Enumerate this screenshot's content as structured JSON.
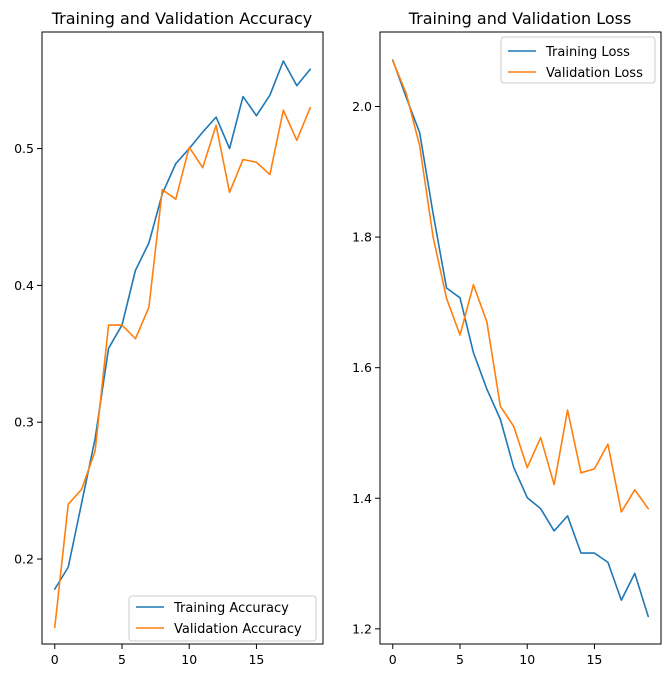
{
  "chart_data": [
    {
      "type": "line",
      "title": "Training and Validation Accuracy",
      "xlabel": "",
      "ylabel": "",
      "x": [
        0,
        1,
        2,
        3,
        4,
        5,
        6,
        7,
        8,
        9,
        10,
        11,
        12,
        13,
        14,
        15,
        16,
        17,
        18,
        19
      ],
      "xlim": [
        -0.95,
        19.95
      ],
      "ylim": [
        0.1379,
        0.5852
      ],
      "xticks": [
        0,
        5,
        10,
        15
      ],
      "yticks": [
        0.2,
        0.3,
        0.4,
        0.5
      ],
      "xtick_labels": [
        "0",
        "5",
        "10",
        "15"
      ],
      "ytick_labels": [
        "0.2",
        "0.3",
        "0.4",
        "0.5"
      ],
      "grid": false,
      "legend_position": "lower-right",
      "series": [
        {
          "name": "Training Accuracy",
          "color": "#1f77b4",
          "values": [
            0.178,
            0.194,
            0.241,
            0.288,
            0.354,
            0.371,
            0.411,
            0.431,
            0.467,
            0.489,
            0.5,
            0.512,
            0.523,
            0.5,
            0.538,
            0.524,
            0.539,
            0.564,
            0.546,
            0.558
          ]
        },
        {
          "name": "Validation Accuracy",
          "color": "#ff7f0e",
          "values": [
            0.15,
            0.24,
            0.251,
            0.279,
            0.371,
            0.371,
            0.361,
            0.384,
            0.47,
            0.463,
            0.501,
            0.486,
            0.517,
            0.468,
            0.492,
            0.49,
            0.481,
            0.528,
            0.506,
            0.53
          ]
        }
      ]
    },
    {
      "type": "line",
      "title": "Training and Validation Loss",
      "xlabel": "",
      "ylabel": "",
      "x": [
        0,
        1,
        2,
        3,
        4,
        5,
        6,
        7,
        8,
        9,
        10,
        11,
        12,
        13,
        14,
        15,
        16,
        17,
        18,
        19
      ],
      "xlim": [
        -0.95,
        19.95
      ],
      "ylim": [
        1.1768,
        2.1141
      ],
      "xticks": [
        0,
        5,
        10,
        15
      ],
      "yticks": [
        1.2,
        1.4,
        1.6,
        1.8,
        2.0
      ],
      "xtick_labels": [
        "0",
        "5",
        "10",
        "15"
      ],
      "ytick_labels": [
        "1.2",
        "1.4",
        "1.6",
        "1.8",
        "2.0"
      ],
      "grid": false,
      "legend_position": "upper-right",
      "series": [
        {
          "name": "Training Loss",
          "color": "#1f77b4",
          "values": [
            2.071,
            2.014,
            1.96,
            1.836,
            1.722,
            1.707,
            1.623,
            1.567,
            1.521,
            1.447,
            1.401,
            1.384,
            1.35,
            1.373,
            1.316,
            1.316,
            1.302,
            1.244,
            1.285,
            1.219
          ]
        },
        {
          "name": "Validation Loss",
          "color": "#ff7f0e",
          "values": [
            2.07,
            2.02,
            1.94,
            1.8,
            1.706,
            1.65,
            1.727,
            1.67,
            1.541,
            1.51,
            1.447,
            1.493,
            1.421,
            1.535,
            1.439,
            1.445,
            1.483,
            1.379,
            1.413,
            1.384
          ]
        }
      ]
    }
  ]
}
